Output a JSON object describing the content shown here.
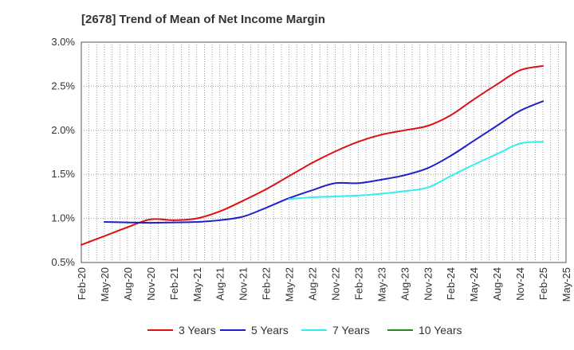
{
  "title": "[2678]  Trend of Mean of Net Income Margin",
  "chart_data": {
    "type": "line",
    "title": "[2678]  Trend of Mean of Net Income Margin",
    "xlabel": "",
    "ylabel": "",
    "ylim": [
      0.5,
      3.0
    ],
    "y_ticks": [
      "0.5%",
      "1.0%",
      "1.5%",
      "2.0%",
      "2.5%",
      "3.0%"
    ],
    "x_ticks": [
      "Feb-20",
      "May-20",
      "Aug-20",
      "Nov-20",
      "Feb-21",
      "May-21",
      "Aug-21",
      "Nov-21",
      "Feb-22",
      "May-22",
      "Aug-22",
      "Nov-22",
      "Feb-23",
      "May-23",
      "Aug-23",
      "Nov-23",
      "Feb-24",
      "May-24",
      "Aug-24",
      "Nov-24",
      "Feb-25",
      "May-25"
    ],
    "grid": true,
    "legend_position": "bottom",
    "series": [
      {
        "name": "3 Years",
        "color": "#dd1111",
        "x": [
          "Feb-20",
          "May-20",
          "Aug-20",
          "Nov-20",
          "Feb-21",
          "May-21",
          "Aug-21",
          "Nov-21",
          "Feb-22",
          "May-22",
          "Aug-22",
          "Nov-22",
          "Feb-23",
          "May-23",
          "Aug-23",
          "Nov-23",
          "Feb-24",
          "May-24",
          "Aug-24",
          "Nov-24",
          "Feb-25"
        ],
        "values": [
          0.7,
          0.8,
          0.9,
          0.99,
          0.98,
          1.0,
          1.08,
          1.2,
          1.33,
          1.48,
          1.63,
          1.76,
          1.87,
          1.95,
          2.0,
          2.05,
          2.17,
          2.35,
          2.52,
          2.68,
          2.73
        ]
      },
      {
        "name": "5 Years",
        "color": "#1f1fcc",
        "x": [
          "May-20",
          "Aug-20",
          "Nov-20",
          "Feb-21",
          "May-21",
          "Aug-21",
          "Nov-21",
          "Feb-22",
          "May-22",
          "Aug-22",
          "Nov-22",
          "Feb-23",
          "May-23",
          "Aug-23",
          "Nov-23",
          "Feb-24",
          "May-24",
          "Aug-24",
          "Nov-24",
          "Feb-25"
        ],
        "values": [
          0.96,
          0.955,
          0.95,
          0.955,
          0.96,
          0.98,
          1.02,
          1.12,
          1.23,
          1.32,
          1.4,
          1.4,
          1.44,
          1.49,
          1.57,
          1.71,
          1.88,
          2.05,
          2.22,
          2.33
        ]
      },
      {
        "name": "7 Years",
        "color": "#33eeee",
        "x": [
          "May-22",
          "Aug-22",
          "Nov-22",
          "Feb-23",
          "May-23",
          "Aug-23",
          "Nov-23",
          "Feb-24",
          "May-24",
          "Aug-24",
          "Nov-24",
          "Feb-25"
        ],
        "values": [
          1.22,
          1.24,
          1.25,
          1.26,
          1.28,
          1.31,
          1.35,
          1.48,
          1.61,
          1.73,
          1.85,
          1.87
        ]
      },
      {
        "name": "10 Years",
        "color": "#228822",
        "x": [],
        "values": []
      }
    ]
  }
}
